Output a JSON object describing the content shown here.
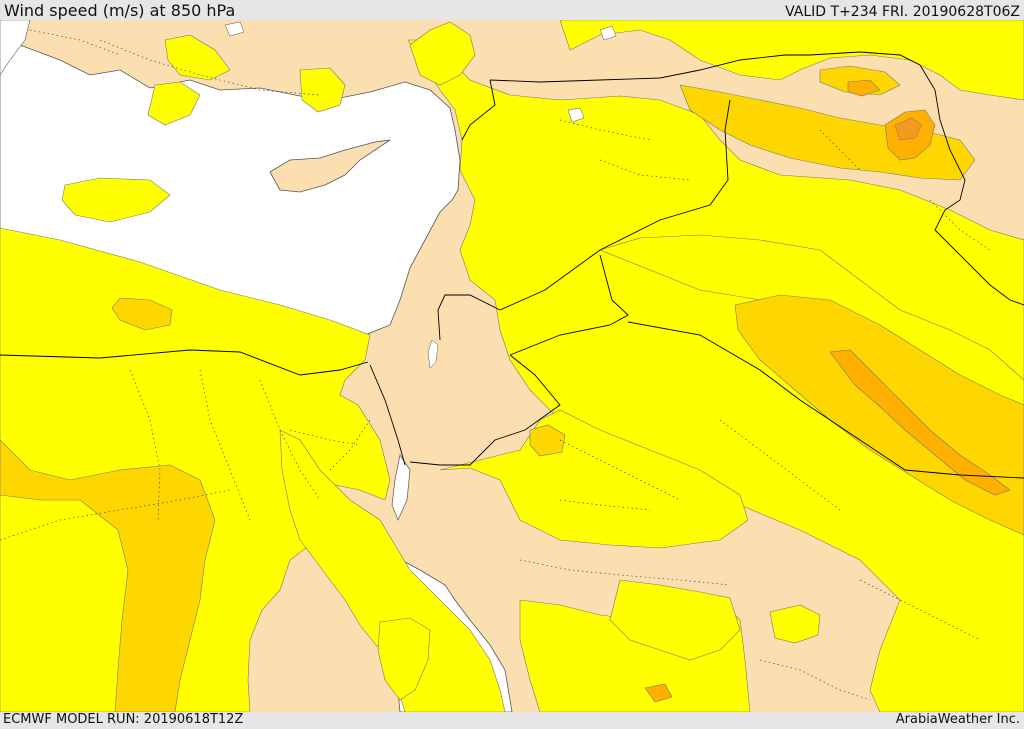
{
  "header": {
    "title": "Wind speed (m/s) at 850 hPa",
    "valid": "VALID T+234 FRI. 20190628T06Z"
  },
  "footer": {
    "model_run": "ECMWF MODEL RUN: 20190618T12Z",
    "credit": "ArabiaWeather Inc."
  },
  "colors": {
    "sea": "#ffffff",
    "calm": "#fcdfb0",
    "light": "#ffff00",
    "moderate": "#ffd700",
    "strong": "#ffb000",
    "strongest": "#f59a20",
    "border": "#000000"
  }
}
